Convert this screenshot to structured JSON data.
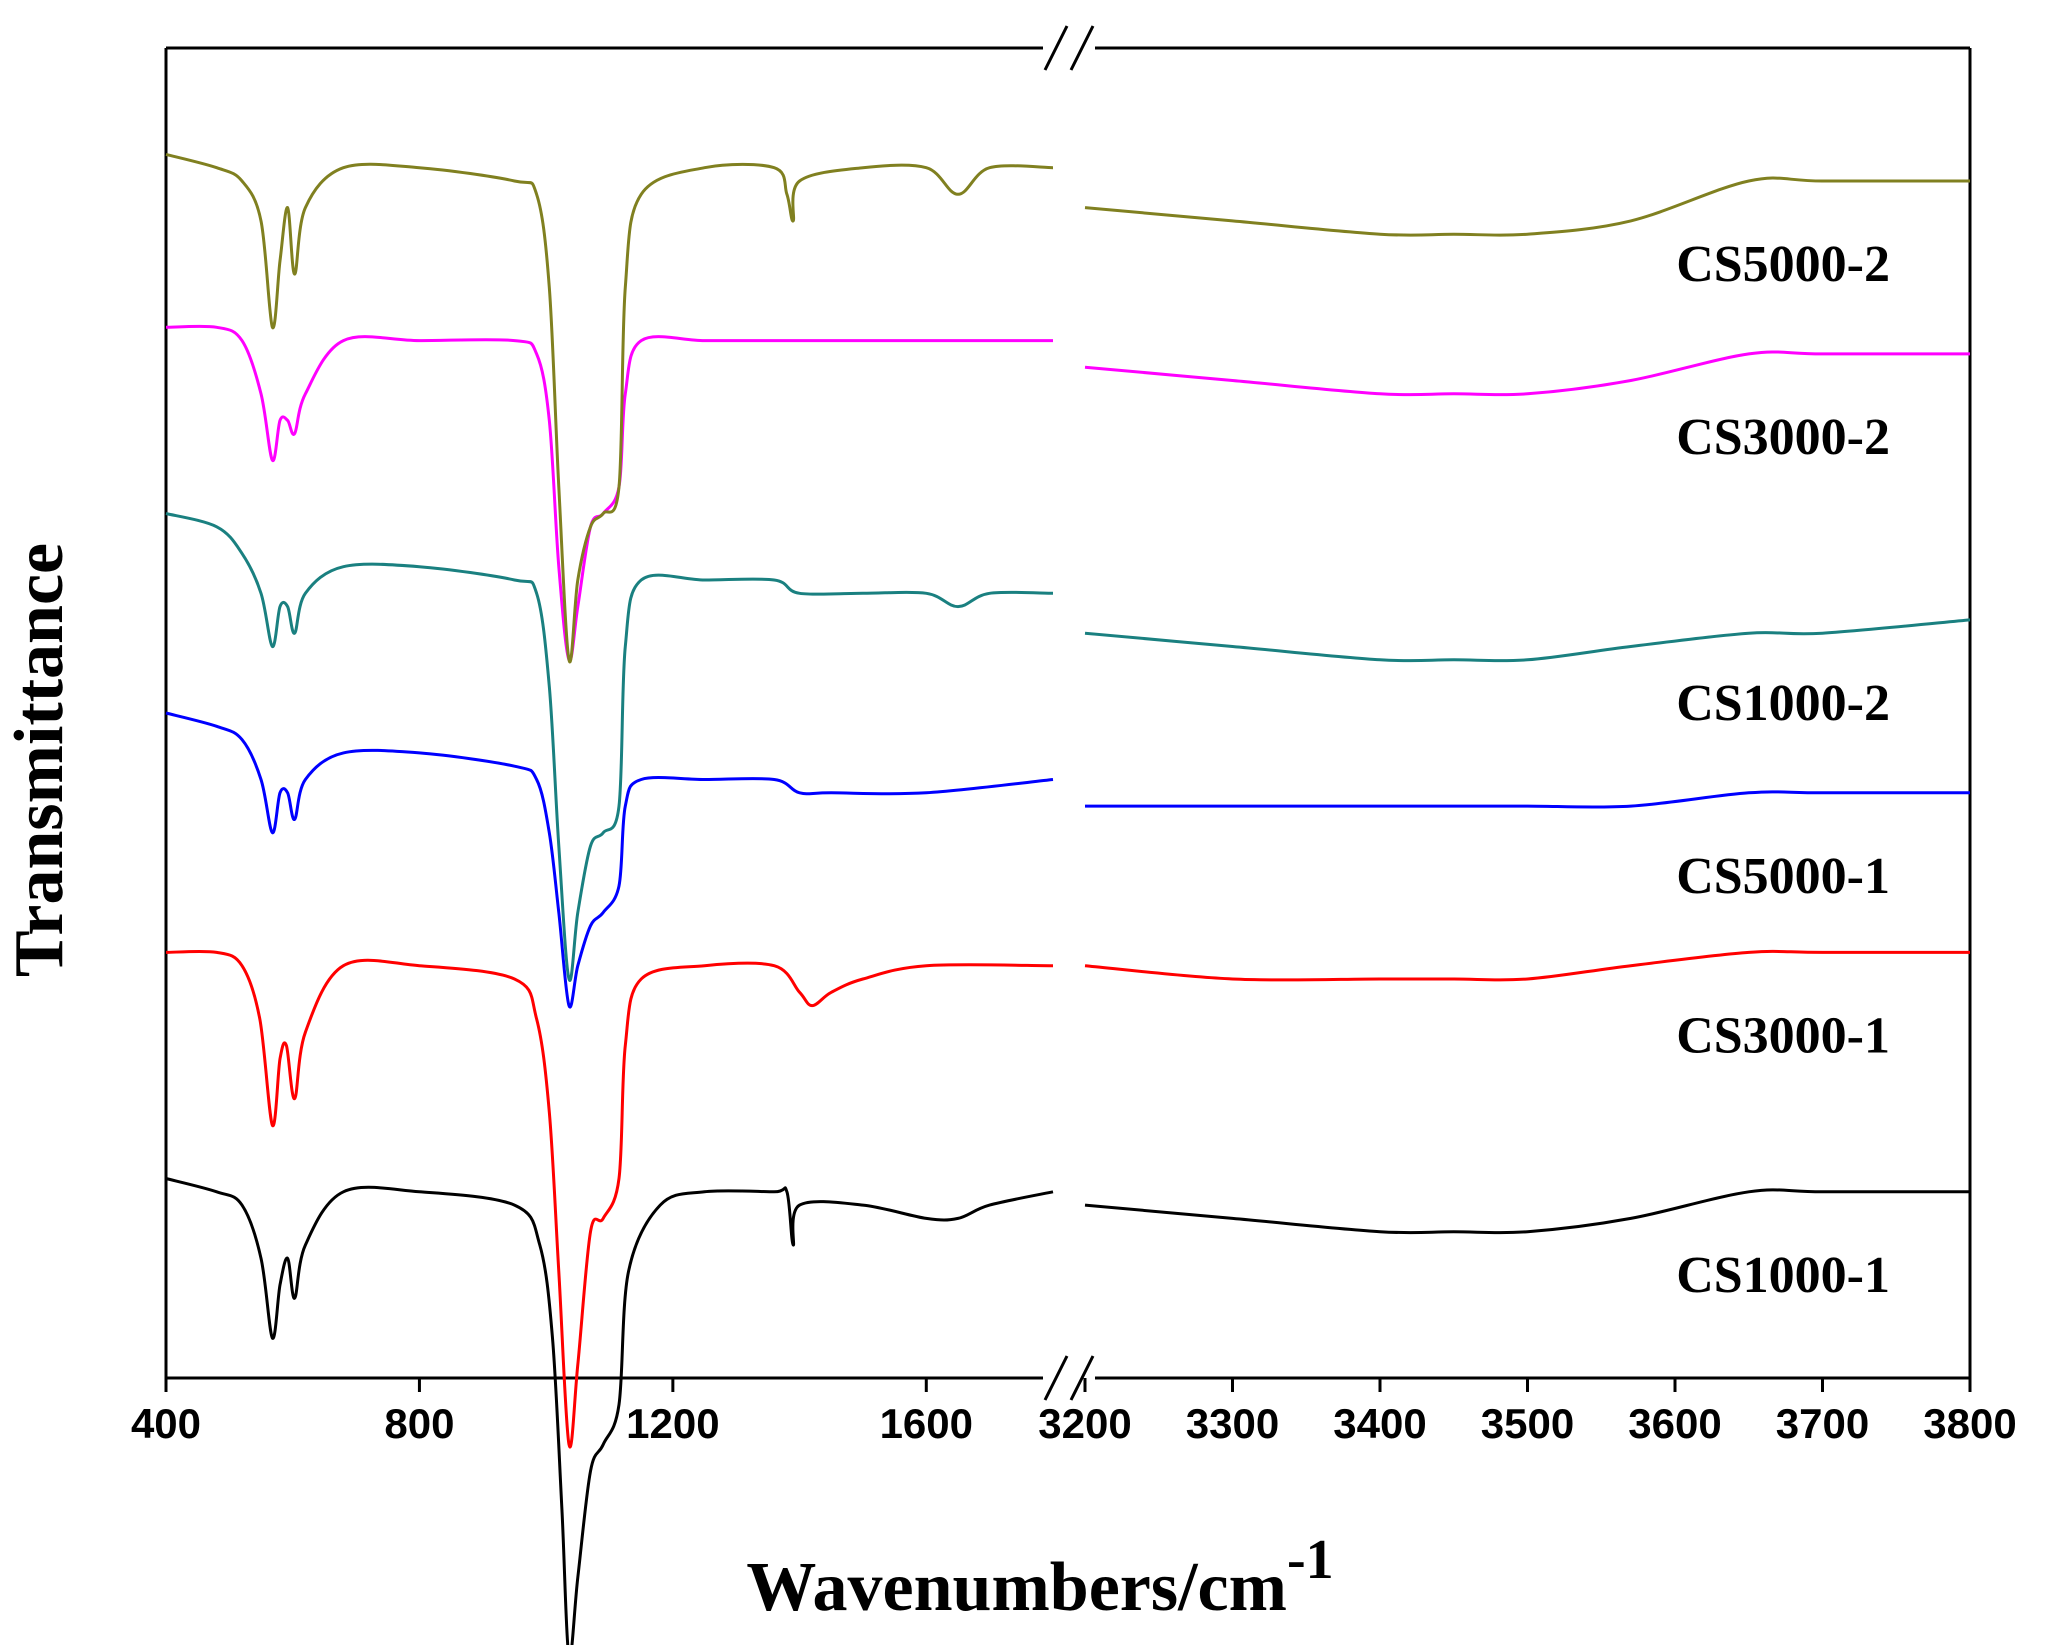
{
  "chart_data": {
    "type": "line",
    "title": "",
    "xlabel": "Wavenumbers/cm",
    "xlabel_superscript": "-1",
    "ylabel": "Transmittance",
    "broken_x_axis": true,
    "segments": [
      {
        "xlim": [
          400,
          1800
        ],
        "ticks": [
          400,
          800,
          1200,
          1600
        ],
        "tick_labels": [
          "400",
          "800",
          "1200",
          "1600"
        ]
      },
      {
        "xlim": [
          3200,
          3800
        ],
        "ticks": [
          3200,
          3300,
          3400,
          3500,
          3600,
          3700,
          3800
        ],
        "tick_labels": [
          "3200",
          "3300",
          "3400",
          "3500",
          "3600",
          "3700",
          "3800"
        ]
      }
    ],
    "ylim": [
      0,
      100
    ],
    "y_ticks_shown": false,
    "grid": false,
    "series": [
      {
        "name": "CS1000-1",
        "label": "CS1000-1",
        "color": "#000000",
        "offset": 15,
        "points_left": [
          [
            400,
            0
          ],
          [
            480,
            -1
          ],
          [
            520,
            -2
          ],
          [
            550,
            -6
          ],
          [
            568,
            -12
          ],
          [
            580,
            -8
          ],
          [
            592,
            -6
          ],
          [
            603,
            -9
          ],
          [
            620,
            -5
          ],
          [
            680,
            -1
          ],
          [
            800,
            -1
          ],
          [
            950,
            -2
          ],
          [
            990,
            -5
          ],
          [
            1010,
            -12
          ],
          [
            1025,
            -25
          ],
          [
            1036,
            -36
          ],
          [
            1050,
            -30
          ],
          [
            1070,
            -22
          ],
          [
            1090,
            -20
          ],
          [
            1115,
            -17
          ],
          [
            1130,
            -7
          ],
          [
            1180,
            -2
          ],
          [
            1250,
            -1
          ],
          [
            1360,
            -1
          ],
          [
            1380,
            -1
          ],
          [
            1390,
            -5
          ],
          [
            1400,
            -2
          ],
          [
            1500,
            -2
          ],
          [
            1600,
            -3
          ],
          [
            1650,
            -3
          ],
          [
            1700,
            -2
          ],
          [
            1800,
            -1
          ]
        ],
        "points_right": [
          [
            3200,
            -2
          ],
          [
            3300,
            -3
          ],
          [
            3400,
            -4
          ],
          [
            3450,
            -4
          ],
          [
            3500,
            -4
          ],
          [
            3570,
            -3
          ],
          [
            3650,
            -1
          ],
          [
            3700,
            -1
          ],
          [
            3800,
            -1
          ]
        ]
      },
      {
        "name": "CS3000-1",
        "label": "CS3000-1",
        "color": "#ff0000",
        "offset": 32,
        "points_left": [
          [
            400,
            0
          ],
          [
            480,
            0
          ],
          [
            520,
            -1
          ],
          [
            548,
            -5
          ],
          [
            568,
            -13
          ],
          [
            580,
            -8
          ],
          [
            590,
            -7
          ],
          [
            603,
            -11
          ],
          [
            620,
            -6
          ],
          [
            680,
            -1
          ],
          [
            800,
            -1
          ],
          [
            950,
            -2
          ],
          [
            985,
            -5
          ],
          [
            1005,
            -12
          ],
          [
            1020,
            -24
          ],
          [
            1036,
            -37
          ],
          [
            1050,
            -31
          ],
          [
            1070,
            -21
          ],
          [
            1090,
            -20
          ],
          [
            1115,
            -17
          ],
          [
            1125,
            -7
          ],
          [
            1150,
            -2
          ],
          [
            1250,
            -1
          ],
          [
            1360,
            -1
          ],
          [
            1400,
            -3
          ],
          [
            1420,
            -4
          ],
          [
            1450,
            -3
          ],
          [
            1500,
            -2
          ],
          [
            1600,
            -1
          ],
          [
            1800,
            -1
          ]
        ],
        "points_right": [
          [
            3200,
            -1
          ],
          [
            3300,
            -2
          ],
          [
            3400,
            -2
          ],
          [
            3450,
            -2
          ],
          [
            3500,
            -2
          ],
          [
            3570,
            -1
          ],
          [
            3650,
            0
          ],
          [
            3700,
            0
          ],
          [
            3800,
            0
          ]
        ]
      },
      {
        "name": "CS5000-1",
        "label": "CS5000-1",
        "color": "#0000ff",
        "offset": 50,
        "points_left": [
          [
            400,
            0
          ],
          [
            480,
            -1
          ],
          [
            520,
            -2
          ],
          [
            550,
            -5
          ],
          [
            568,
            -9
          ],
          [
            580,
            -6
          ],
          [
            592,
            -6
          ],
          [
            603,
            -8
          ],
          [
            620,
            -5
          ],
          [
            680,
            -3
          ],
          [
            800,
            -3
          ],
          [
            950,
            -4
          ],
          [
            985,
            -5
          ],
          [
            1005,
            -9
          ],
          [
            1020,
            -15
          ],
          [
            1036,
            -22
          ],
          [
            1050,
            -19
          ],
          [
            1070,
            -16
          ],
          [
            1090,
            -15
          ],
          [
            1115,
            -13
          ],
          [
            1125,
            -7
          ],
          [
            1150,
            -5
          ],
          [
            1250,
            -5
          ],
          [
            1360,
            -5
          ],
          [
            1400,
            -6
          ],
          [
            1450,
            -6
          ],
          [
            1600,
            -6
          ],
          [
            1800,
            -5
          ]
        ],
        "points_right": [
          [
            3200,
            -7
          ],
          [
            3300,
            -7
          ],
          [
            3400,
            -7
          ],
          [
            3450,
            -7
          ],
          [
            3500,
            -7
          ],
          [
            3570,
            -7
          ],
          [
            3650,
            -6
          ],
          [
            3700,
            -6
          ],
          [
            3800,
            -6
          ]
        ]
      },
      {
        "name": "CS1000-2",
        "label": "CS1000-2",
        "color": "#1a8080",
        "offset": 65,
        "points_left": [
          [
            400,
            0
          ],
          [
            480,
            -1
          ],
          [
            520,
            -3
          ],
          [
            550,
            -6
          ],
          [
            568,
            -10
          ],
          [
            580,
            -7
          ],
          [
            592,
            -7
          ],
          [
            603,
            -9
          ],
          [
            620,
            -6
          ],
          [
            680,
            -4
          ],
          [
            800,
            -4
          ],
          [
            950,
            -5
          ],
          [
            985,
            -6
          ],
          [
            1005,
            -13
          ],
          [
            1020,
            -25
          ],
          [
            1036,
            -35
          ],
          [
            1050,
            -30
          ],
          [
            1070,
            -25
          ],
          [
            1090,
            -24
          ],
          [
            1115,
            -22
          ],
          [
            1125,
            -10
          ],
          [
            1150,
            -5
          ],
          [
            1250,
            -5
          ],
          [
            1360,
            -5
          ],
          [
            1400,
            -6
          ],
          [
            1500,
            -6
          ],
          [
            1600,
            -6
          ],
          [
            1650,
            -7
          ],
          [
            1700,
            -6
          ],
          [
            1800,
            -6
          ]
        ],
        "points_right": [
          [
            3200,
            -9
          ],
          [
            3300,
            -10
          ],
          [
            3400,
            -11
          ],
          [
            3450,
            -11
          ],
          [
            3500,
            -11
          ],
          [
            3570,
            -10
          ],
          [
            3650,
            -9
          ],
          [
            3700,
            -9
          ],
          [
            3800,
            -8
          ]
        ]
      },
      {
        "name": "CS3000-2",
        "label": "CS3000-2",
        "color": "#ff00ff",
        "offset": 79,
        "points_left": [
          [
            400,
            0
          ],
          [
            480,
            0
          ],
          [
            520,
            -1
          ],
          [
            550,
            -5
          ],
          [
            568,
            -10
          ],
          [
            580,
            -7
          ],
          [
            592,
            -7
          ],
          [
            603,
            -8
          ],
          [
            620,
            -5
          ],
          [
            680,
            -1
          ],
          [
            800,
            -1
          ],
          [
            950,
            -1
          ],
          [
            985,
            -2
          ],
          [
            1005,
            -7
          ],
          [
            1020,
            -18
          ],
          [
            1036,
            -25
          ],
          [
            1050,
            -21
          ],
          [
            1070,
            -15
          ],
          [
            1090,
            -14
          ],
          [
            1115,
            -12
          ],
          [
            1125,
            -5
          ],
          [
            1150,
            -1
          ],
          [
            1250,
            -1
          ],
          [
            1360,
            -1
          ],
          [
            1400,
            -1
          ],
          [
            1500,
            -1
          ],
          [
            1650,
            -1
          ],
          [
            1800,
            -1
          ]
        ],
        "points_right": [
          [
            3200,
            -3
          ],
          [
            3300,
            -4
          ],
          [
            3400,
            -5
          ],
          [
            3450,
            -5
          ],
          [
            3500,
            -5
          ],
          [
            3570,
            -4
          ],
          [
            3650,
            -2
          ],
          [
            3700,
            -2
          ],
          [
            3800,
            -2
          ]
        ]
      },
      {
        "name": "CS5000-2",
        "label": "CS5000-2",
        "color": "#808020",
        "offset": 92,
        "points_left": [
          [
            400,
            0
          ],
          [
            480,
            -1
          ],
          [
            520,
            -2
          ],
          [
            550,
            -5
          ],
          [
            568,
            -13
          ],
          [
            580,
            -8
          ],
          [
            592,
            -4
          ],
          [
            603,
            -9
          ],
          [
            620,
            -4
          ],
          [
            680,
            -1
          ],
          [
            800,
            -1
          ],
          [
            950,
            -2
          ],
          [
            985,
            -3
          ],
          [
            1005,
            -10
          ],
          [
            1020,
            -25
          ],
          [
            1036,
            -38
          ],
          [
            1050,
            -32
          ],
          [
            1070,
            -28
          ],
          [
            1090,
            -27
          ],
          [
            1115,
            -25
          ],
          [
            1125,
            -10
          ],
          [
            1150,
            -3
          ],
          [
            1250,
            -1
          ],
          [
            1360,
            -1
          ],
          [
            1380,
            -3
          ],
          [
            1390,
            -5
          ],
          [
            1400,
            -2
          ],
          [
            1500,
            -1
          ],
          [
            1600,
            -1
          ],
          [
            1650,
            -3
          ],
          [
            1700,
            -1
          ],
          [
            1800,
            -1
          ]
        ],
        "points_right": [
          [
            3200,
            -4
          ],
          [
            3300,
            -5
          ],
          [
            3400,
            -6
          ],
          [
            3450,
            -6
          ],
          [
            3500,
            -6
          ],
          [
            3570,
            -5
          ],
          [
            3650,
            -2
          ],
          [
            3700,
            -2
          ],
          [
            3800,
            -2
          ]
        ]
      }
    ]
  }
}
